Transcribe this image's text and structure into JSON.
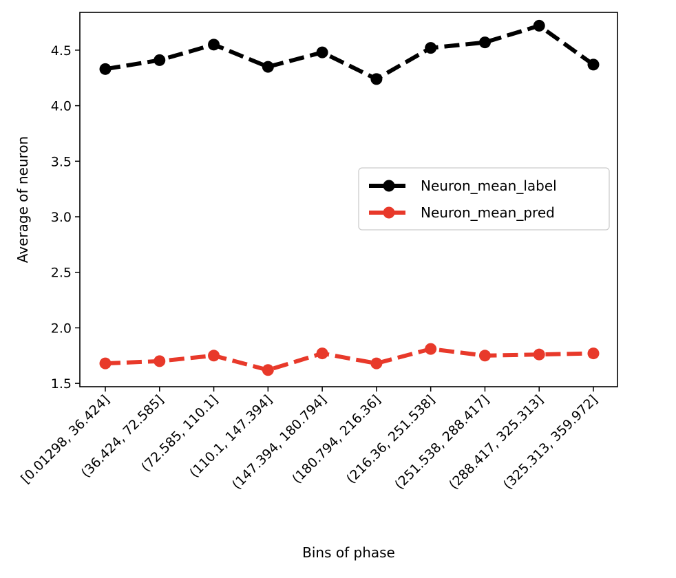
{
  "chart_data": {
    "type": "line",
    "title": "",
    "xlabel": "Bins of phase",
    "ylabel": "Average of neuron",
    "categories": [
      "[0.01298,  36.424]",
      "(36.424, 72.585]",
      "(72.585, 110.1]",
      "(110.1, 147.394]",
      "(147.394, 180.794]",
      "(180.794, 216.36]",
      "(216.36, 251.538]",
      "(251.538, 288.417]",
      "(288.417, 325.313]",
      "(325.313, 359.972]"
    ],
    "ylim": [
      1.47,
      4.84
    ],
    "yticks": [
      1.5,
      2.0,
      2.5,
      3.0,
      3.5,
      4.0,
      4.5
    ],
    "ytick_labels": [
      "1.5",
      "2.0",
      "2.5",
      "3.0",
      "3.5",
      "4.0",
      "4.5"
    ],
    "grid": false,
    "legend_position": "center-right",
    "series": [
      {
        "name": "Neuron_mean_label",
        "color": "#000000",
        "line_style": "dashed",
        "marker": "circle",
        "values": [
          4.33,
          4.41,
          4.55,
          4.35,
          4.48,
          4.24,
          4.52,
          4.57,
          4.72,
          4.37
        ]
      },
      {
        "name": "Neuron_mean_pred",
        "color": "#e8392a",
        "line_style": "dashed",
        "marker": "circle",
        "values": [
          1.68,
          1.7,
          1.75,
          1.62,
          1.77,
          1.68,
          1.81,
          1.75,
          1.76,
          1.77
        ]
      }
    ]
  }
}
